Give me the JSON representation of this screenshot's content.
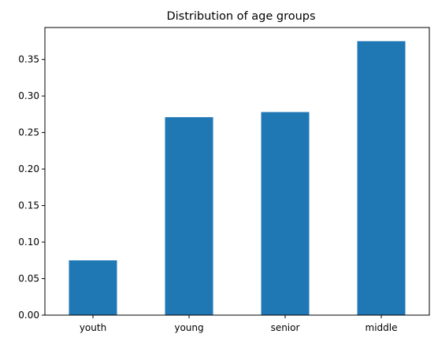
{
  "chart_data": {
    "type": "bar",
    "title": "Distribution of age groups",
    "xlabel": "",
    "ylabel": "",
    "categories": [
      "youth",
      "young",
      "senior",
      "middle"
    ],
    "values": [
      0.075,
      0.271,
      0.278,
      0.375
    ],
    "ylim": [
      0,
      0.39375
    ],
    "yticks": [
      "0.00",
      "0.05",
      "0.10",
      "0.15",
      "0.20",
      "0.25",
      "0.30",
      "0.35"
    ],
    "ytick_values": [
      0.0,
      0.05,
      0.1,
      0.15,
      0.2,
      0.25,
      0.3,
      0.35
    ],
    "bar_color": "#1f77b4",
    "grid": false,
    "legend": false
  }
}
